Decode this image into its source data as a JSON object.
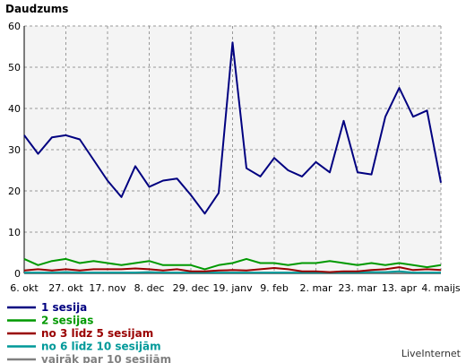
{
  "chart_data": {
    "type": "line",
    "ylabel": "Daudzums",
    "ylim": [
      0,
      60
    ],
    "yticks": [
      0,
      10,
      20,
      30,
      40,
      50,
      60
    ],
    "grid": true,
    "legend_position": "bottom-left",
    "x_tick_labels": [
      "6. okt",
      "27. okt",
      "17. nov",
      "8. dec",
      "29. dec",
      "19. janv",
      "9. feb",
      "2. mar",
      "23. mar",
      "13. apr",
      "4. maijs"
    ],
    "x_tick_index": [
      0,
      3,
      6,
      9,
      12,
      15,
      18,
      21,
      24,
      27,
      30
    ],
    "series": [
      {
        "name": "1 sesija",
        "color": "#000080",
        "values": [
          33.5,
          29,
          33,
          33.5,
          32.5,
          27.5,
          22.5,
          18.5,
          26,
          21,
          22.5,
          23,
          19,
          14.5,
          19.5,
          56,
          25.5,
          23.5,
          28,
          25,
          23.5,
          27,
          24.5,
          37,
          24.5,
          24,
          38,
          45,
          38,
          39.5,
          22
        ]
      },
      {
        "name": "2 sesijas",
        "color": "#009900",
        "values": [
          3.5,
          2,
          3,
          3.5,
          2.5,
          3,
          2.5,
          2,
          2.5,
          3,
          2,
          2,
          2,
          1,
          2,
          2.5,
          3.5,
          2.5,
          2.5,
          2,
          2.5,
          2.5,
          3,
          2.5,
          2,
          2.5,
          2,
          2.5,
          2,
          1.5,
          2
        ]
      },
      {
        "name": "no 3 līdz 5 sesijam",
        "color": "#990000",
        "values": [
          0.7,
          1,
          0.7,
          1,
          0.7,
          1,
          1,
          1,
          1.2,
          1,
          0.7,
          1,
          0.5,
          0.5,
          0.7,
          0.8,
          0.7,
          1,
          1.3,
          1,
          0.5,
          0.5,
          0.3,
          0.5,
          0.5,
          0.8,
          1,
          1.5,
          0.8,
          1,
          0.8
        ]
      },
      {
        "name": "no 6 līdz 10 sesijām",
        "color": "#009999",
        "values": [
          0.2,
          0.2,
          0.2,
          0.3,
          0.2,
          0.2,
          0.2,
          0.2,
          0.2,
          0.3,
          0.2,
          0.2,
          0.2,
          0.2,
          0.2,
          0.2,
          0.2,
          0.2,
          0.2,
          0.2,
          0.2,
          0.2,
          0.2,
          0.2,
          0.2,
          0.3,
          0.3,
          0.5,
          0.2,
          0.2,
          0.2
        ]
      },
      {
        "name": "vairāk par 10 sesijām",
        "color": "#808080",
        "values": [
          0,
          0,
          0,
          0,
          0,
          0,
          0,
          0,
          0,
          0,
          0,
          0,
          0,
          0,
          0,
          0,
          0,
          0,
          0,
          0,
          0,
          0,
          0,
          0,
          0,
          0,
          0,
          0,
          0,
          0,
          0
        ]
      }
    ]
  },
  "brand_text": "LiveInternet"
}
